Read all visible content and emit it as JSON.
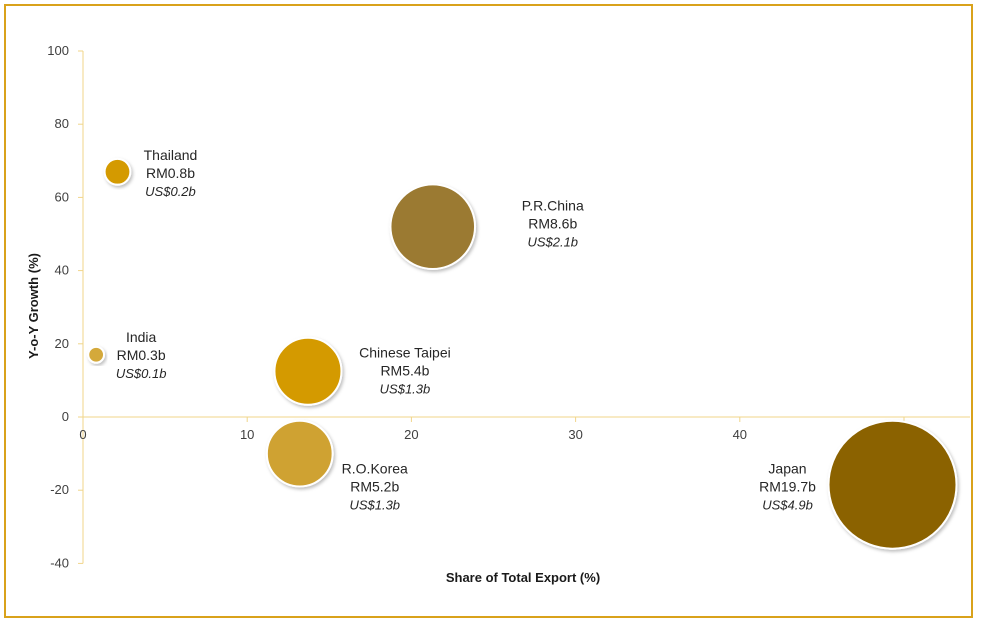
{
  "chart_data": {
    "type": "bubble",
    "xlabel": "Share of Total Export (%)",
    "ylabel": "Y-o-Y Growth (%)",
    "xlim": [
      0,
      55
    ],
    "ylim": [
      -40,
      100
    ],
    "xticks": [
      0,
      10,
      20,
      30,
      40,
      50
    ],
    "yticks": [
      -40,
      -20,
      0,
      20,
      40,
      60,
      80,
      100
    ],
    "grid": false,
    "series": [
      {
        "name": "Thailand",
        "x": 2.1,
        "y": 67,
        "size": 0.8,
        "label_lines": [
          "Thailand",
          "RM0.8b",
          "US$0.2b"
        ],
        "color": "#d49a00",
        "label_pos": "right-up"
      },
      {
        "name": "India",
        "x": 0.8,
        "y": 17,
        "size": 0.3,
        "label_lines": [
          "India",
          "RM0.3b",
          "US$0.1b"
        ],
        "color": "#d4a93b",
        "label_pos": "right-up"
      },
      {
        "name": "P.R.China",
        "x": 21.3,
        "y": 52,
        "size": 8.6,
        "label_lines": [
          "P.R.China",
          "RM8.6b",
          "US$2.1b"
        ],
        "color": "#9b7a32",
        "label_pos": "right-up"
      },
      {
        "name": "Chinese Taipei",
        "x": 13.7,
        "y": 12.5,
        "size": 5.4,
        "label_lines": [
          "Chinese Taipei",
          "RM5.4b",
          "US$1.3b"
        ],
        "color": "#d49a00",
        "label_pos": "right-up"
      },
      {
        "name": "R.O.Korea",
        "x": 13.2,
        "y": -10,
        "size": 5.2,
        "label_lines": [
          "R.O.Korea",
          "RM5.2b",
          "US$1.3b"
        ],
        "color": "#cfa233",
        "label_pos": "right-down"
      },
      {
        "name": "Japan",
        "x": 49.3,
        "y": -18.5,
        "size": 19.7,
        "label_lines": [
          "Japan",
          "RM19.7b",
          "US$4.9b"
        ],
        "color": "#8b6200",
        "label_pos": "left"
      }
    ]
  },
  "colors": {
    "frame": "#d9a21b",
    "axis": "#f0d58a"
  }
}
